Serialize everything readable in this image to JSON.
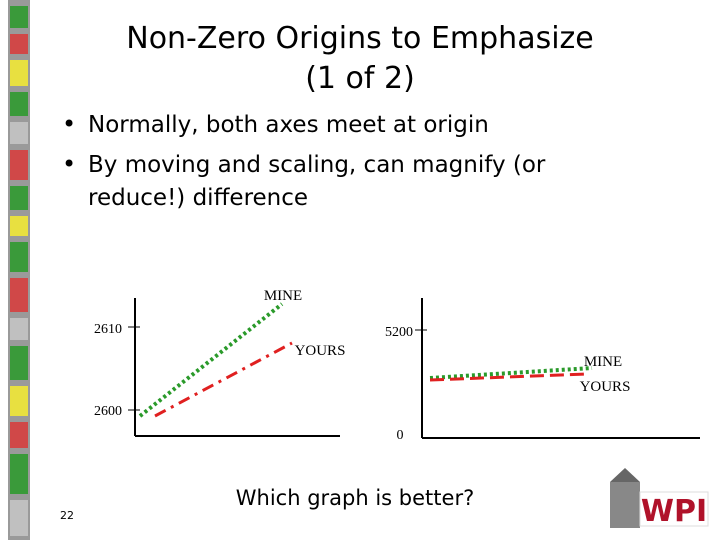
{
  "header": {
    "title_lines": [
      "Non-Zero Origins to Emphasize",
      "(1 of 2)"
    ]
  },
  "bullets": [
    "Normally, both axes meet at origin",
    "By moving and scaling, can magnify (or",
    "reduce!) difference"
  ],
  "left_graph": {
    "ticks": [
      "2610",
      "2600"
    ],
    "labels": [
      "MINE",
      "YOURS"
    ]
  },
  "right_graph": {
    "ticks": [
      "5200",
      "0"
    ],
    "labels": [
      "MINE",
      "YOURS"
    ]
  },
  "question": "Which graph is better?",
  "slide_number": "22",
  "logo": "WPI"
}
